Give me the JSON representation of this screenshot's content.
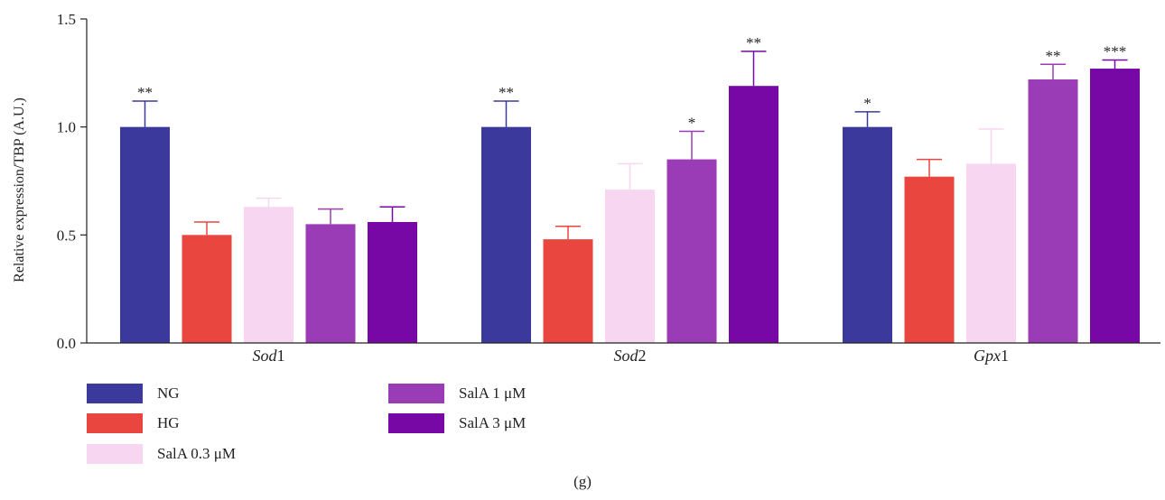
{
  "chart_data": {
    "type": "bar",
    "ylabel": "Relative expression/TBP (A.U.)",
    "ylim": [
      0,
      1.5
    ],
    "yticks": [
      "0.0",
      "0.5",
      "1.0",
      "1.5"
    ],
    "categories": [
      "Sod1",
      "Sod2",
      "Gpx1"
    ],
    "series": [
      {
        "name": "NG",
        "color": "#3b3a9c",
        "values": [
          1.0,
          1.0,
          1.0
        ],
        "errors": [
          0.12,
          0.12,
          0.07
        ],
        "stars": [
          "**",
          "**",
          "*"
        ]
      },
      {
        "name": "HG",
        "color": "#e8463f",
        "values": [
          0.5,
          0.48,
          0.77
        ],
        "errors": [
          0.06,
          0.06,
          0.08
        ],
        "stars": [
          "",
          "",
          ""
        ]
      },
      {
        "name": "SalA 0.3 μM",
        "color": "#f7d6f1",
        "values": [
          0.63,
          0.71,
          0.83
        ],
        "errors": [
          0.04,
          0.12,
          0.16
        ],
        "stars": [
          "",
          "",
          ""
        ]
      },
      {
        "name": "SalA 1 μM",
        "color": "#9b3cb7",
        "values": [
          0.55,
          0.85,
          1.22
        ],
        "errors": [
          0.07,
          0.13,
          0.07
        ],
        "stars": [
          "",
          "*",
          "**"
        ]
      },
      {
        "name": "SalA 3 μM",
        "color": "#7708a6",
        "values": [
          0.56,
          1.19,
          1.27
        ],
        "errors": [
          0.07,
          0.16,
          0.04
        ],
        "stars": [
          "",
          "**",
          "***"
        ]
      }
    ]
  },
  "legend": {
    "items": [
      "NG",
      "HG",
      "SalA 0.3 μM",
      "SalA 1 μM",
      "SalA 3 μM"
    ]
  },
  "caption": "(g)"
}
